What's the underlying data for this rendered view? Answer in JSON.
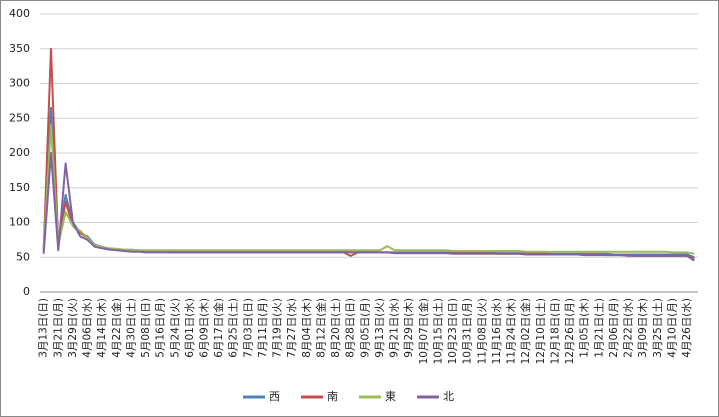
{
  "chart_data": {
    "type": "line",
    "categories": [
      "3月13日(日)",
      null,
      "3月21日(月)",
      null,
      "3月29日(火)",
      null,
      "4月06日(水)",
      null,
      "4月14日(木)",
      null,
      "4月22日(金)",
      null,
      "4月30日(土)",
      null,
      "5月08日(日)",
      null,
      "5月16日(月)",
      null,
      "5月24日(火)",
      null,
      "6月01日(水)",
      null,
      "6月09日(木)",
      null,
      "6月17日(金)",
      null,
      "6月25日(土)",
      null,
      "7月03日(日)",
      null,
      "7月11日(月)",
      null,
      "7月19日(火)",
      null,
      "7月27日(水)",
      null,
      "8月04日(木)",
      null,
      "8月12日(金)",
      null,
      "8月20日(土)",
      null,
      "8月28日(日)",
      null,
      "9月05日(月)",
      null,
      "9月13日(火)",
      null,
      "9月21日(水)",
      null,
      "9月29日(木)",
      null,
      "10月07日(金)",
      null,
      "10月15日(土)",
      null,
      "10月23日(日)",
      null,
      "10月31日(月)",
      null,
      "11月08日(火)",
      null,
      "11月16日(水)",
      null,
      "11月24日(木)",
      null,
      "12月02日(金)",
      null,
      "12月10日(土)",
      null,
      "12月18日(日)",
      null,
      "12月26日(月)",
      null,
      "1月05日(木)",
      null,
      "1月21日(土)",
      null,
      "2月06日(月)",
      null,
      "2月22日(水)",
      null,
      "3月09日(木)",
      null,
      "3月25日(土)",
      null,
      "4月10日(月)",
      null,
      "4月26日(水)",
      null
    ],
    "series": [
      {
        "name": "西",
        "color": "#4f81bd",
        "values": [
          60,
          265,
          70,
          140,
          100,
          85,
          80,
          68,
          65,
          62,
          62,
          60,
          60,
          59,
          59,
          58,
          58,
          58,
          58,
          58,
          58,
          58,
          58,
          58,
          58,
          58,
          58,
          58,
          58,
          58,
          58,
          58,
          58,
          58,
          58,
          58,
          58,
          58,
          58,
          58,
          58,
          58,
          58,
          58,
          58,
          58,
          57,
          57,
          57,
          57,
          57,
          57,
          57,
          57,
          57,
          57,
          57,
          57,
          57,
          57,
          57,
          57,
          56,
          56,
          56,
          56,
          56,
          56,
          56,
          55,
          55,
          55,
          55,
          55,
          55,
          55,
          55,
          55,
          54,
          54,
          54,
          54,
          54,
          54,
          54,
          54,
          54,
          54,
          54,
          50
        ]
      },
      {
        "name": "南",
        "color": "#c0504d",
        "values": [
          60,
          350,
          65,
          130,
          95,
          85,
          78,
          66,
          64,
          62,
          61,
          60,
          59,
          59,
          58,
          58,
          58,
          57,
          57,
          57,
          57,
          57,
          57,
          57,
          57,
          57,
          57,
          57,
          57,
          57,
          57,
          57,
          57,
          57,
          57,
          57,
          57,
          57,
          57,
          57,
          57,
          57,
          52,
          57,
          57,
          57,
          57,
          57,
          56,
          56,
          56,
          56,
          56,
          56,
          56,
          56,
          56,
          56,
          56,
          56,
          56,
          56,
          55,
          55,
          55,
          55,
          55,
          55,
          55,
          55,
          54,
          54,
          54,
          54,
          54,
          54,
          54,
          53,
          53,
          53,
          53,
          52,
          52,
          52,
          52,
          52,
          52,
          52,
          52,
          48
        ]
      },
      {
        "name": "東",
        "color": "#9bbb59",
        "values": [
          62,
          240,
          68,
          115,
          95,
          88,
          78,
          67,
          65,
          63,
          62,
          61,
          61,
          60,
          60,
          60,
          60,
          60,
          60,
          60,
          60,
          60,
          60,
          60,
          60,
          60,
          60,
          60,
          60,
          60,
          60,
          60,
          60,
          60,
          60,
          60,
          60,
          60,
          60,
          60,
          60,
          60,
          60,
          60,
          60,
          60,
          60,
          66,
          60,
          60,
          60,
          60,
          60,
          60,
          60,
          60,
          59,
          59,
          59,
          59,
          59,
          59,
          59,
          59,
          59,
          59,
          58,
          58,
          58,
          58,
          58,
          58,
          58,
          58,
          58,
          58,
          58,
          58,
          58,
          58,
          58,
          58,
          58,
          58,
          58,
          58,
          57,
          57,
          57,
          55
        ]
      },
      {
        "name": "北",
        "color": "#8064a2",
        "values": [
          55,
          200,
          60,
          185,
          100,
          80,
          75,
          65,
          63,
          61,
          60,
          59,
          58,
          58,
          57,
          57,
          57,
          57,
          57,
          57,
          57,
          57,
          57,
          57,
          57,
          57,
          57,
          57,
          57,
          57,
          57,
          57,
          57,
          57,
          57,
          57,
          57,
          57,
          57,
          57,
          57,
          57,
          57,
          57,
          57,
          57,
          57,
          57,
          56,
          56,
          56,
          56,
          56,
          56,
          56,
          56,
          55,
          55,
          55,
          55,
          55,
          55,
          55,
          55,
          55,
          55,
          54,
          54,
          54,
          54,
          54,
          54,
          54,
          54,
          53,
          53,
          53,
          53,
          53,
          53,
          52,
          52,
          52,
          52,
          52,
          52,
          52,
          52,
          52,
          45
        ]
      }
    ],
    "ylim": [
      0,
      400
    ],
    "yticks": [
      0,
      50,
      100,
      150,
      200,
      250,
      300,
      350,
      400
    ],
    "grid": true,
    "legend": "bottom"
  }
}
